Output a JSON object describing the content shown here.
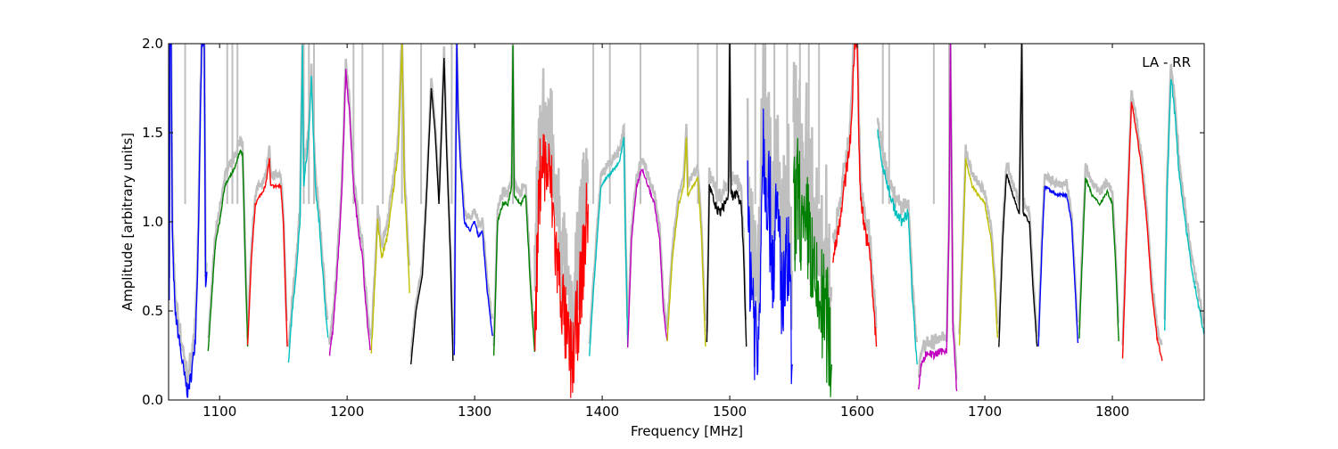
{
  "chart_data": {
    "type": "line",
    "title": "",
    "annotation": "LA - RR",
    "xlabel": "Frequency [MHz]",
    "ylabel": "Amplitude [arbitrary units]",
    "xlim": [
      1060,
      1872
    ],
    "ylim": [
      0.0,
      2.0
    ],
    "xticks": [
      1100,
      1200,
      1300,
      1400,
      1500,
      1600,
      1700,
      1800
    ],
    "xtick_labels": [
      "1100",
      "1200",
      "1300",
      "1400",
      "1500",
      "1600",
      "1700",
      "1800"
    ],
    "yticks": [
      0.0,
      0.5,
      1.0,
      1.5,
      2.0
    ],
    "ytick_labels": [
      "0.0",
      "0.5",
      "1.0",
      "1.5",
      "2.0"
    ],
    "grid": false,
    "background_series_color": "#bfbfbf",
    "background_spikes": [
      1073,
      1106,
      1110,
      1114,
      1166,
      1170,
      1174,
      1205,
      1212,
      1228,
      1243,
      1258,
      1282,
      1330,
      1393,
      1406,
      1430,
      1475,
      1490,
      1520,
      1528,
      1535,
      1545,
      1555,
      1562,
      1570,
      1620,
      1625,
      1660,
      1672
    ],
    "segments": [
      {
        "color": "#0000ff",
        "noise": 0.04,
        "points": [
          [
            1060.5,
            0.6
          ],
          [
            1061,
            2.0
          ],
          [
            1062,
            2.0
          ],
          [
            1063,
            0.9
          ],
          [
            1065,
            0.5
          ],
          [
            1068,
            0.35
          ],
          [
            1072,
            0.15
          ],
          [
            1075,
            0.04
          ],
          [
            1078,
            0.15
          ],
          [
            1081,
            0.35
          ],
          [
            1083,
            0.8
          ],
          [
            1086,
            2.0
          ],
          [
            1088,
            2.0
          ],
          [
            1089,
            0.6
          ],
          [
            1090,
            0.72
          ]
        ]
      },
      {
        "color": "#008000",
        "noise": 0.01,
        "points": [
          [
            1091,
            0.27
          ],
          [
            1094,
            0.6
          ],
          [
            1097,
            0.9
          ],
          [
            1100,
            1.0
          ],
          [
            1104,
            1.2
          ],
          [
            1108,
            1.25
          ],
          [
            1112,
            1.3
          ],
          [
            1116,
            1.4
          ],
          [
            1118,
            1.38
          ],
          [
            1120,
            0.8
          ],
          [
            1122,
            0.3
          ]
        ]
      },
      {
        "color": "#ff0000",
        "noise": 0.01,
        "points": [
          [
            1122,
            0.3
          ],
          [
            1125,
            0.8
          ],
          [
            1128,
            1.1
          ],
          [
            1132,
            1.15
          ],
          [
            1136,
            1.2
          ],
          [
            1139,
            1.35
          ],
          [
            1140,
            1.2
          ],
          [
            1145,
            1.2
          ],
          [
            1148,
            1.2
          ],
          [
            1150,
            1.0
          ],
          [
            1153,
            0.3
          ]
        ]
      },
      {
        "color": "#00bfbf",
        "noise": 0.02,
        "points": [
          [
            1154,
            0.2
          ],
          [
            1157,
            0.5
          ],
          [
            1160,
            0.7
          ],
          [
            1163,
            1.0
          ],
          [
            1165,
            2.0
          ],
          [
            1166,
            1.2
          ],
          [
            1170,
            1.5
          ],
          [
            1172,
            1.8
          ],
          [
            1175,
            1.2
          ],
          [
            1178,
            1.0
          ],
          [
            1182,
            0.6
          ],
          [
            1185,
            0.35
          ]
        ]
      },
      {
        "color": "#bf00bf",
        "noise": 0.02,
        "points": [
          [
            1186,
            0.25
          ],
          [
            1189,
            0.4
          ],
          [
            1193,
            0.8
          ],
          [
            1196,
            1.2
          ],
          [
            1199,
            1.85
          ],
          [
            1202,
            1.6
          ],
          [
            1205,
            1.2
          ],
          [
            1208,
            1.0
          ],
          [
            1212,
            0.8
          ],
          [
            1215,
            0.5
          ],
          [
            1218,
            0.28
          ]
        ]
      },
      {
        "color": "#bfbf00",
        "noise": 0.02,
        "points": [
          [
            1219,
            0.28
          ],
          [
            1222,
            0.7
          ],
          [
            1224,
            1.0
          ],
          [
            1227,
            0.8
          ],
          [
            1231,
            0.9
          ],
          [
            1235,
            1.1
          ],
          [
            1240,
            1.4
          ],
          [
            1243,
            2.0
          ],
          [
            1245,
            1.2
          ],
          [
            1249,
            0.6
          ]
        ]
      },
      {
        "color": "#000000",
        "noise": 0.0,
        "points": [
          [
            1250,
            0.2
          ],
          [
            1254,
            0.5
          ],
          [
            1259,
            0.7
          ],
          [
            1262,
            1.1
          ],
          [
            1266,
            1.75
          ],
          [
            1269,
            1.5
          ],
          [
            1272,
            1.1
          ],
          [
            1274,
            1.5
          ],
          [
            1276,
            1.92
          ],
          [
            1278,
            1.4
          ],
          [
            1281,
            0.8
          ],
          [
            1283,
            0.22
          ]
        ]
      },
      {
        "color": "#0000ff",
        "noise": 0.01,
        "points": [
          [
            1284,
            0.26
          ],
          [
            1285,
            1.2
          ],
          [
            1286,
            2.0
          ],
          [
            1287,
            1.6
          ],
          [
            1289,
            1.3
          ],
          [
            1292,
            1.0
          ],
          [
            1296,
            0.95
          ],
          [
            1300,
            1.0
          ],
          [
            1303,
            0.92
          ],
          [
            1306,
            0.95
          ],
          [
            1310,
            0.6
          ],
          [
            1314,
            0.36
          ]
        ]
      },
      {
        "color": "#008000",
        "noise": 0.01,
        "points": [
          [
            1315,
            0.25
          ],
          [
            1318,
            1.0
          ],
          [
            1322,
            1.1
          ],
          [
            1326,
            1.1
          ],
          [
            1329,
            1.2
          ],
          [
            1330,
            2.0
          ],
          [
            1331,
            1.15
          ],
          [
            1336,
            1.1
          ],
          [
            1340,
            1.15
          ],
          [
            1344,
            0.6
          ],
          [
            1347,
            0.27
          ]
        ]
      },
      {
        "color": "#ff0000",
        "noise": 0.25,
        "points": [
          [
            1347,
            0.3
          ],
          [
            1350,
            1.0
          ],
          [
            1352,
            1.37
          ],
          [
            1356,
            1.3
          ],
          [
            1360,
            1.2
          ],
          [
            1364,
            0.8
          ],
          [
            1368,
            0.6
          ],
          [
            1372,
            0.35
          ],
          [
            1376,
            0.2
          ],
          [
            1380,
            0.4
          ],
          [
            1384,
            0.7
          ],
          [
            1389,
            1.1
          ]
        ]
      },
      {
        "color": "#00bfbf",
        "noise": 0.01,
        "points": [
          [
            1390,
            0.25
          ],
          [
            1393,
            0.6
          ],
          [
            1396,
            0.9
          ],
          [
            1399,
            1.2
          ],
          [
            1404,
            1.25
          ],
          [
            1410,
            1.3
          ],
          [
            1414,
            1.35
          ],
          [
            1417,
            1.48
          ],
          [
            1418,
            1.0
          ],
          [
            1420,
            0.3
          ]
        ]
      },
      {
        "color": "#bf00bf",
        "noise": 0.01,
        "points": [
          [
            1420,
            0.3
          ],
          [
            1423,
            0.9
          ],
          [
            1427,
            1.2
          ],
          [
            1431,
            1.3
          ],
          [
            1436,
            1.2
          ],
          [
            1441,
            1.1
          ],
          [
            1445,
            0.9
          ],
          [
            1448,
            0.5
          ],
          [
            1451,
            0.33
          ]
        ]
      },
      {
        "color": "#bfbf00",
        "noise": 0.01,
        "points": [
          [
            1451,
            0.33
          ],
          [
            1455,
            0.8
          ],
          [
            1460,
            1.1
          ],
          [
            1464,
            1.2
          ],
          [
            1466,
            1.48
          ],
          [
            1467,
            1.15
          ],
          [
            1471,
            1.2
          ],
          [
            1475,
            1.25
          ],
          [
            1478,
            0.9
          ],
          [
            1481,
            0.3
          ]
        ]
      },
      {
        "color": "#000000",
        "noise": 0.03,
        "points": [
          [
            1482,
            0.3
          ],
          [
            1484,
            1.2
          ],
          [
            1488,
            1.1
          ],
          [
            1492,
            1.05
          ],
          [
            1496,
            1.1
          ],
          [
            1499,
            1.15
          ],
          [
            1500,
            2.0
          ],
          [
            1501,
            1.15
          ],
          [
            1505,
            1.15
          ],
          [
            1509,
            1.1
          ],
          [
            1511,
            0.8
          ],
          [
            1513,
            0.3
          ]
        ]
      },
      {
        "color": "#0000ff",
        "noise": 0.35,
        "points": [
          [
            1514,
            1.0
          ],
          [
            1518,
            0.6
          ],
          [
            1522,
            0.2
          ],
          [
            1526,
            1.5
          ],
          [
            1530,
            1.2
          ],
          [
            1534,
            0.8
          ],
          [
            1538,
            1.0
          ],
          [
            1542,
            0.5
          ],
          [
            1546,
            0.8
          ],
          [
            1549,
            0.2
          ]
        ]
      },
      {
        "color": "#008000",
        "noise": 0.35,
        "points": [
          [
            1550,
            1.0
          ],
          [
            1554,
            1.2
          ],
          [
            1558,
            0.8
          ],
          [
            1562,
            1.0
          ],
          [
            1566,
            0.6
          ],
          [
            1570,
            0.55
          ],
          [
            1574,
            0.5
          ],
          [
            1577,
            0.4
          ],
          [
            1580,
            0.2
          ]
        ]
      },
      {
        "color": "#ff0000",
        "noise": 0.05,
        "points": [
          [
            1581,
            0.8
          ],
          [
            1586,
            1.0
          ],
          [
            1590,
            1.2
          ],
          [
            1595,
            1.5
          ],
          [
            1598,
            2.0
          ],
          [
            1600,
            2.0
          ],
          [
            1602,
            1.2
          ],
          [
            1605,
            1.0
          ],
          [
            1610,
            0.8
          ],
          [
            1613,
            0.5
          ],
          [
            1615,
            0.3
          ]
        ]
      },
      {
        "color": "#00bfbf",
        "noise": 0.03,
        "points": [
          [
            1616,
            1.5
          ],
          [
            1620,
            1.3
          ],
          [
            1624,
            1.2
          ],
          [
            1630,
            1.05
          ],
          [
            1635,
            1.0
          ],
          [
            1640,
            1.05
          ],
          [
            1643,
            0.6
          ],
          [
            1647,
            0.2
          ]
        ]
      },
      {
        "color": "#bf00bf",
        "noise": 0.02,
        "points": [
          [
            1648,
            0.05
          ],
          [
            1650,
            0.2
          ],
          [
            1655,
            0.27
          ],
          [
            1660,
            0.25
          ],
          [
            1665,
            0.27
          ],
          [
            1670,
            0.28
          ],
          [
            1672,
            1.0
          ],
          [
            1673,
            2.0
          ],
          [
            1675,
            0.4
          ],
          [
            1678,
            0.05
          ]
        ]
      },
      {
        "color": "#bfbf00",
        "noise": 0.01,
        "points": [
          [
            1680,
            0.3
          ],
          [
            1683,
            0.9
          ],
          [
            1685,
            1.35
          ],
          [
            1690,
            1.2
          ],
          [
            1695,
            1.15
          ],
          [
            1700,
            1.1
          ],
          [
            1705,
            0.9
          ],
          [
            1708,
            0.6
          ],
          [
            1710,
            0.35
          ]
        ]
      },
      {
        "color": "#000000",
        "noise": 0.01,
        "points": [
          [
            1711,
            0.3
          ],
          [
            1714,
            0.9
          ],
          [
            1717,
            1.27
          ],
          [
            1722,
            1.15
          ],
          [
            1727,
            1.05
          ],
          [
            1729,
            2.0
          ],
          [
            1730,
            1.05
          ],
          [
            1735,
            1.0
          ],
          [
            1738,
            0.6
          ],
          [
            1741,
            0.3
          ]
        ]
      },
      {
        "color": "#0000ff",
        "noise": 0.01,
        "points": [
          [
            1742,
            0.3
          ],
          [
            1745,
            0.9
          ],
          [
            1747,
            1.2
          ],
          [
            1752,
            1.17
          ],
          [
            1758,
            1.15
          ],
          [
            1764,
            1.15
          ],
          [
            1768,
            1.0
          ],
          [
            1771,
            0.6
          ],
          [
            1773,
            0.32
          ]
        ]
      },
      {
        "color": "#008000",
        "noise": 0.01,
        "points": [
          [
            1774,
            0.35
          ],
          [
            1777,
            0.9
          ],
          [
            1779,
            1.25
          ],
          [
            1784,
            1.15
          ],
          [
            1790,
            1.1
          ],
          [
            1796,
            1.17
          ],
          [
            1800,
            1.1
          ],
          [
            1803,
            0.7
          ],
          [
            1805,
            0.33
          ]
        ]
      },
      {
        "color": "#ff0000",
        "noise": 0.01,
        "points": [
          [
            1808,
            0.23
          ],
          [
            1811,
            0.9
          ],
          [
            1815,
            1.68
          ],
          [
            1819,
            1.5
          ],
          [
            1823,
            1.3
          ],
          [
            1827,
            1.0
          ],
          [
            1831,
            0.6
          ],
          [
            1835,
            0.35
          ],
          [
            1839,
            0.22
          ]
        ]
      },
      {
        "color": "#00bfbf",
        "noise": 0.02,
        "points": [
          [
            1841,
            0.4
          ],
          [
            1843,
            1.2
          ],
          [
            1846,
            1.82
          ],
          [
            1849,
            1.6
          ],
          [
            1852,
            1.3
          ],
          [
            1857,
            1.0
          ],
          [
            1862,
            0.75
          ],
          [
            1867,
            0.55
          ],
          [
            1872,
            0.37
          ]
        ]
      }
    ]
  }
}
